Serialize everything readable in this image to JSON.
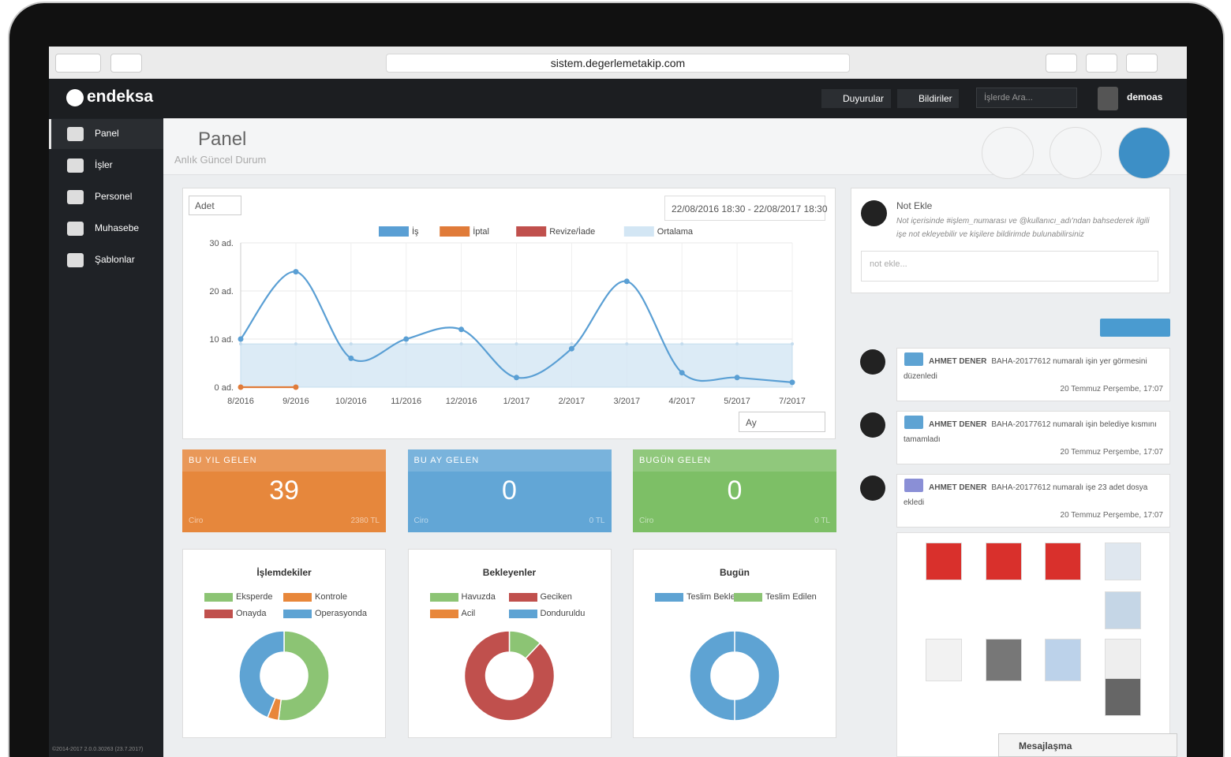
{
  "browser": {
    "url": "sistem.degerlemetakip.com"
  },
  "navbar": {
    "brand": "endeksa",
    "buttons": [
      "Duyurular",
      "Bildiriler"
    ],
    "search_placeholder": "İşlerde Ara...",
    "user": "demoas"
  },
  "sidebar": {
    "items": [
      "Panel",
      "İşler",
      "Personel",
      "Muhasebe",
      "Şablonlar"
    ],
    "footer": "©2014-2017 2.0.0.30263 (23.7.2017)"
  },
  "header": {
    "title": "Panel",
    "subtitle": "Anlık Güncel Durum"
  },
  "line_chart": {
    "type": "line",
    "unit_select": "Adet",
    "date_range": "22/08/2016 18:30 - 22/08/2017 18:30",
    "period_select": "Ay",
    "categories": [
      "8/2016",
      "9/2016",
      "10/2016",
      "11/2016",
      "12/2016",
      "1/2017",
      "2/2017",
      "3/2017",
      "4/2017",
      "5/2017",
      "7/2017"
    ],
    "series": [
      {
        "name": "İş",
        "color": "#5a9fd4",
        "values": [
          10,
          24,
          6,
          10,
          12,
          2,
          8,
          22,
          3,
          2,
          1
        ]
      },
      {
        "name": "İptal",
        "color": "#e07b39",
        "values": [
          0,
          0,
          null,
          null,
          null,
          null,
          null,
          null,
          null,
          null,
          null
        ]
      },
      {
        "name": "Revize/İade",
        "color": "#c0504d",
        "values": [
          null,
          null,
          null,
          null,
          null,
          null,
          null,
          null,
          null,
          null,
          null
        ]
      },
      {
        "name": "Ortalama",
        "color": "#d3e6f4",
        "area": true,
        "values": [
          9,
          9,
          9,
          9,
          9,
          9,
          9,
          9,
          9,
          9,
          9
        ]
      }
    ],
    "ylim": [
      0,
      30
    ],
    "yticks": [
      {
        "value": 0,
        "label": "0 ad."
      },
      {
        "value": 10,
        "label": "10 ad."
      },
      {
        "value": 20,
        "label": "20 ad."
      },
      {
        "value": 30,
        "label": "30 ad."
      }
    ],
    "grid": true
  },
  "stats": [
    {
      "title": "BU YIL GELEN",
      "value": 39,
      "footer_label": "Ciro",
      "footer_value": "2380 TL",
      "color": "#e6873c"
    },
    {
      "title": "BU AY GELEN",
      "value": 0,
      "footer_label": "Ciro",
      "footer_value": "0 TL",
      "color": "#62a6d6"
    },
    {
      "title": "BUGÜN GELEN",
      "value": 0,
      "footer_label": "Ciro",
      "footer_value": "0 TL",
      "color": "#7dbf66"
    }
  ],
  "donuts": [
    {
      "type": "pie",
      "title": "İşlemdekiler",
      "categories": [
        "Eksperde",
        "Kontrole",
        "Onayda",
        "Operasyonda"
      ],
      "values": [
        52,
        4,
        0,
        44
      ],
      "colors": [
        "#8cc474",
        "#e8873a",
        "#c0504d",
        "#5ea3d3"
      ]
    },
    {
      "type": "pie",
      "title": "Bekleyenler",
      "categories": [
        "Havuzda",
        "Geciken",
        "Acil",
        "Donduruldu"
      ],
      "values": [
        12,
        88,
        0,
        0
      ],
      "colors": [
        "#8cc474",
        "#c0504d",
        "#e8873a",
        "#5ea3d3"
      ]
    },
    {
      "type": "pie",
      "title": "Bugün",
      "categories": [
        "Teslim Bekleyen",
        "Teslim Edilen"
      ],
      "values": [
        100,
        0
      ],
      "colors": [
        "#5ea3d3",
        "#8cc474"
      ]
    }
  ],
  "note": {
    "title": "Not Ekle",
    "text": "Not içerisinde #işlem_numarası ve @kullanıcı_adı'ndan bahsederek ilgili işe not ekleyebilir ve kişilere bildirimde bulunabilirsiniz",
    "placeholder": "not ekle..."
  },
  "activity": [
    {
      "user": "AHMET DENER",
      "text": "BAHA-20177612 numaralı işin yer görmesini düzenledi",
      "time": "20 Temmuz Perşembe, 17:07"
    },
    {
      "user": "AHMET DENER",
      "text": "BAHA-20177612 numaralı işin belediye kısmını tamamladı",
      "time": "20 Temmuz Perşembe, 17:07"
    },
    {
      "user": "AHMET DENER",
      "text": "BAHA-20177612 numaralı işe 23 adet dosya ekledi",
      "time": "20 Temmuz Perşembe, 17:07"
    }
  ],
  "chat": "Mesajlaşma"
}
